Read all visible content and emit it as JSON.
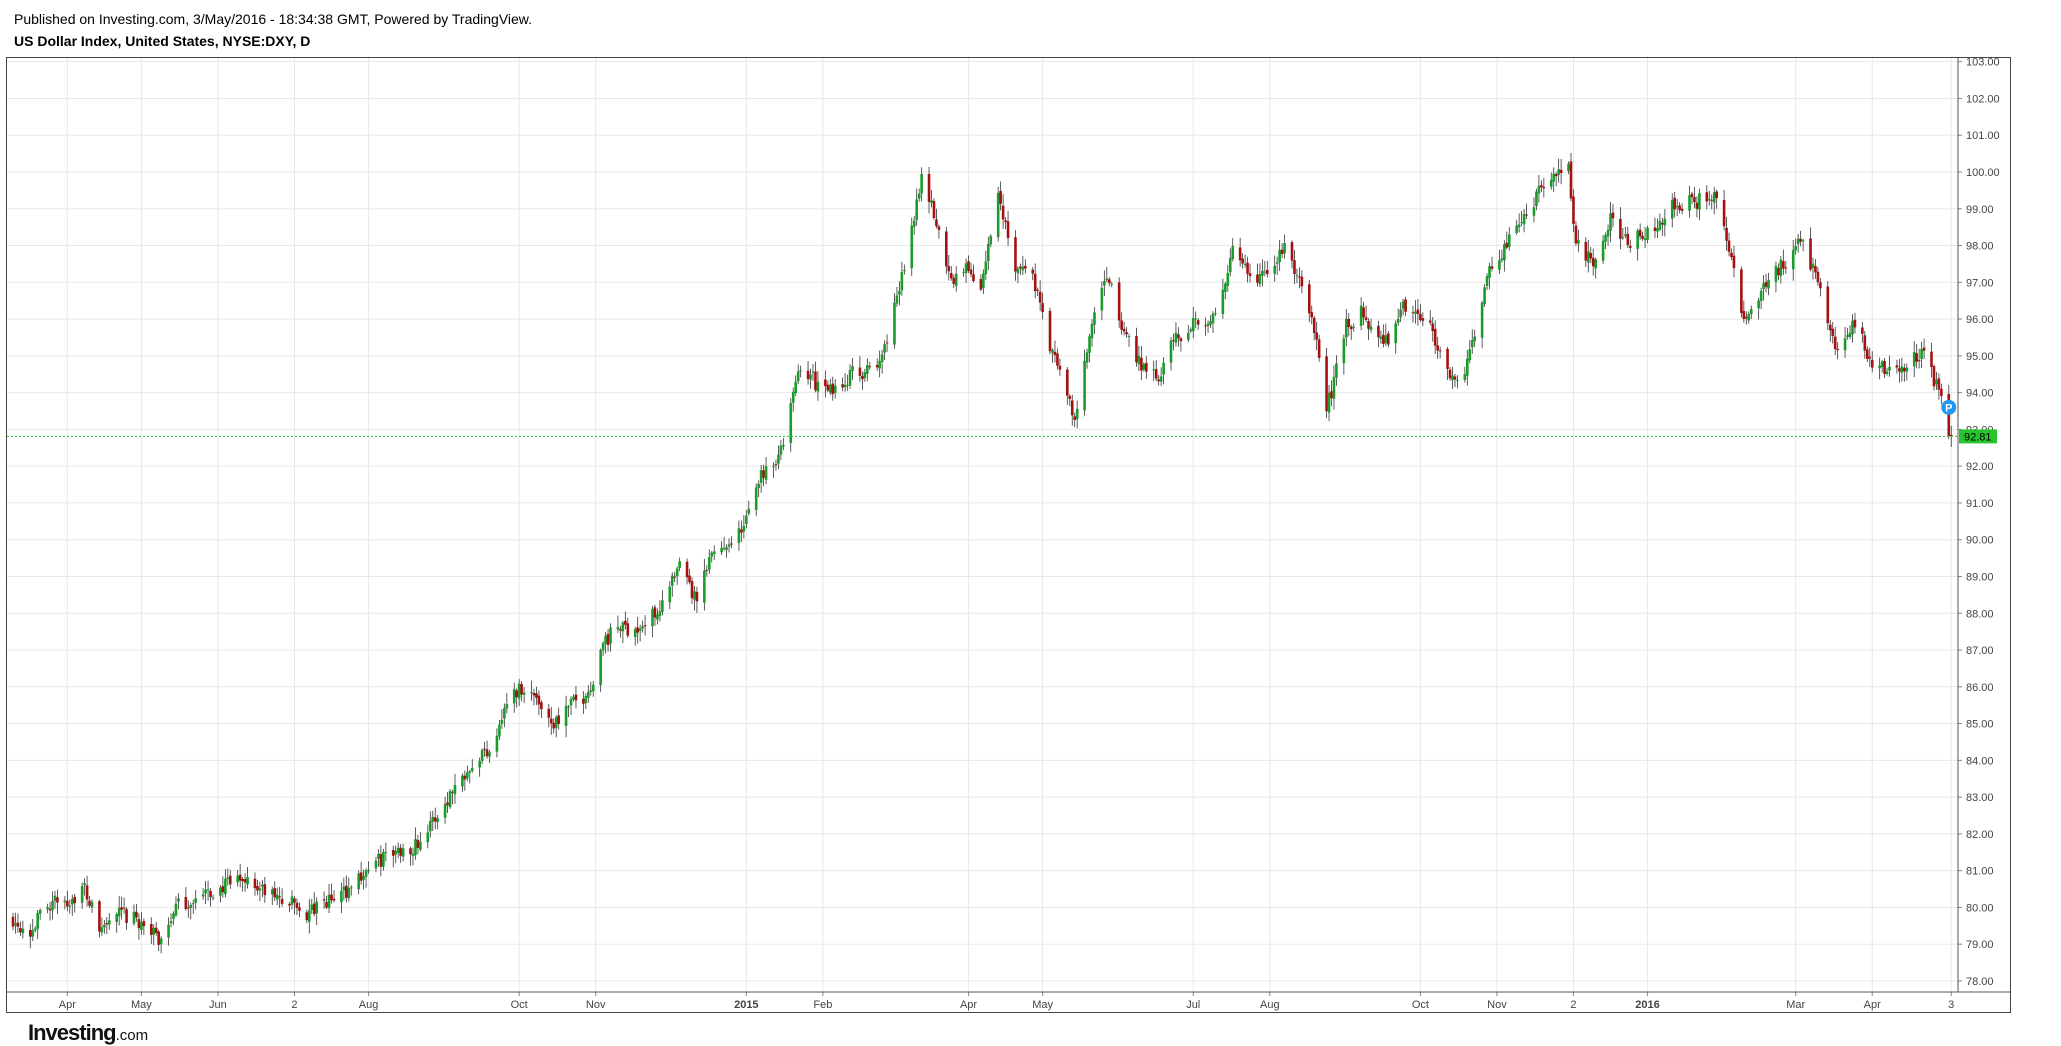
{
  "header": {
    "published": "Published on Investing.com, 3/May/2016 - 18:34:38 GMT, Powered by TradingView.",
    "symbol": "US Dollar Index, United States, NYSE:DXY, D"
  },
  "logo": {
    "brand": "Investing",
    "suffix": ".com"
  },
  "colors": {
    "up": "#1a9b2a",
    "down": "#a31111",
    "grid": "#e8e8e8",
    "last_price_line": "#27c42e",
    "last_price_badge": "#27c42e",
    "marker": "#2196f3"
  },
  "chart_data": {
    "type": "candlestick",
    "title": "US Dollar Index, United States, NYSE:DXY, D",
    "timeframe": "D",
    "ylim": [
      77.7,
      103.1
    ],
    "y_ticks": [
      "78.00",
      "79.00",
      "80.00",
      "81.00",
      "82.00",
      "83.00",
      "84.00",
      "85.00",
      "86.00",
      "87.00",
      "88.00",
      "89.00",
      "90.00",
      "91.00",
      "92.00",
      "93.00",
      "94.00",
      "95.00",
      "96.00",
      "97.00",
      "98.00",
      "99.00",
      "100.00",
      "101.00",
      "102.00",
      "103.00"
    ],
    "x_range": [
      "2014-03-10",
      "2016-05-11"
    ],
    "x_ticks": [
      {
        "label": "Apr",
        "date": "2014-04-01",
        "bold": false
      },
      {
        "label": "May",
        "date": "2014-05-01",
        "bold": false
      },
      {
        "label": "Jun",
        "date": "2014-06-01",
        "bold": false
      },
      {
        "label": "2",
        "date": "2014-07-02",
        "bold": false
      },
      {
        "label": "Aug",
        "date": "2014-08-01",
        "bold": false
      },
      {
        "label": "Oct",
        "date": "2014-10-01",
        "bold": false
      },
      {
        "label": "Nov",
        "date": "2014-11-01",
        "bold": false
      },
      {
        "label": "2015",
        "date": "2015-01-01",
        "bold": true
      },
      {
        "label": "Feb",
        "date": "2015-02-01",
        "bold": false
      },
      {
        "label": "Apr",
        "date": "2015-04-01",
        "bold": false
      },
      {
        "label": "May",
        "date": "2015-05-01",
        "bold": false
      },
      {
        "label": "Jul",
        "date": "2015-07-01",
        "bold": false
      },
      {
        "label": "Aug",
        "date": "2015-08-01",
        "bold": false
      },
      {
        "label": "Oct",
        "date": "2015-10-01",
        "bold": false
      },
      {
        "label": "Nov",
        "date": "2015-11-01",
        "bold": false
      },
      {
        "label": "2",
        "date": "2015-12-02",
        "bold": false
      },
      {
        "label": "2016",
        "date": "2016-01-01",
        "bold": true
      },
      {
        "label": "Mar",
        "date": "2016-03-01",
        "bold": false
      },
      {
        "label": "Apr",
        "date": "2016-04-01",
        "bold": false
      },
      {
        "label": "3",
        "date": "2016-05-03",
        "bold": false
      }
    ],
    "last_price": 92.81,
    "last_price_label": "92.81",
    "marker_label": "P",
    "marker_date": "2016-05-02",
    "marker_value": 93.6,
    "price_path": [
      [
        "2014-03-10",
        79.7
      ],
      [
        "2014-03-17",
        79.35
      ],
      [
        "2014-03-24",
        80.1
      ],
      [
        "2014-04-02",
        80.2
      ],
      [
        "2014-04-08",
        80.5
      ],
      [
        "2014-04-14",
        79.4
      ],
      [
        "2014-04-22",
        79.8
      ],
      [
        "2014-05-01",
        79.6
      ],
      [
        "2014-05-08",
        79.1
      ],
      [
        "2014-05-15",
        80.0
      ],
      [
        "2014-05-26",
        80.3
      ],
      [
        "2014-06-05",
        80.6
      ],
      [
        "2014-06-12",
        80.8
      ],
      [
        "2014-06-20",
        80.4
      ],
      [
        "2014-07-01",
        80.1
      ],
      [
        "2014-07-07",
        79.8
      ],
      [
        "2014-07-14",
        80.1
      ],
      [
        "2014-07-22",
        80.4
      ],
      [
        "2014-07-31",
        81.0
      ],
      [
        "2014-08-08",
        81.4
      ],
      [
        "2014-08-20",
        81.7
      ],
      [
        "2014-08-27",
        82.3
      ],
      [
        "2014-09-05",
        83.3
      ],
      [
        "2014-09-12",
        84.0
      ],
      [
        "2014-09-19",
        84.3
      ],
      [
        "2014-09-26",
        85.6
      ],
      [
        "2014-10-02",
        86.0
      ],
      [
        "2014-10-08",
        85.7
      ],
      [
        "2014-10-15",
        85.0
      ],
      [
        "2014-10-22",
        85.5
      ],
      [
        "2014-10-29",
        85.8
      ],
      [
        "2014-11-04",
        87.2
      ],
      [
        "2014-11-10",
        87.6
      ],
      [
        "2014-11-20",
        87.6
      ],
      [
        "2014-11-28",
        88.3
      ],
      [
        "2014-12-05",
        89.2
      ],
      [
        "2014-12-12",
        88.3
      ],
      [
        "2014-12-18",
        89.6
      ],
      [
        "2014-12-31",
        90.3
      ],
      [
        "2015-01-06",
        91.7
      ],
      [
        "2015-01-15",
        92.4
      ],
      [
        "2015-01-23",
        94.8
      ],
      [
        "2015-01-30",
        94.2
      ],
      [
        "2015-02-05",
        94.0
      ],
      [
        "2015-02-12",
        94.5
      ],
      [
        "2015-02-23",
        94.6
      ],
      [
        "2015-03-03",
        96.5
      ],
      [
        "2015-03-09",
        98.5
      ],
      [
        "2015-03-13",
        100.0
      ],
      [
        "2015-03-18",
        98.8
      ],
      [
        "2015-03-25",
        97.1
      ],
      [
        "2015-04-01",
        97.4
      ],
      [
        "2015-04-06",
        96.8
      ],
      [
        "2015-04-13",
        99.4
      ],
      [
        "2015-04-20",
        97.5
      ],
      [
        "2015-04-27",
        97.2
      ],
      [
        "2015-05-04",
        95.2
      ],
      [
        "2015-05-08",
        94.6
      ],
      [
        "2015-05-14",
        93.2
      ],
      [
        "2015-05-20",
        95.5
      ],
      [
        "2015-05-27",
        97.2
      ],
      [
        "2015-06-03",
        95.6
      ],
      [
        "2015-06-10",
        94.8
      ],
      [
        "2015-06-17",
        94.5
      ],
      [
        "2015-06-24",
        95.5
      ],
      [
        "2015-07-02",
        96.0
      ],
      [
        "2015-07-10",
        96.0
      ],
      [
        "2015-07-17",
        97.8
      ],
      [
        "2015-07-24",
        97.1
      ],
      [
        "2015-07-31",
        97.2
      ],
      [
        "2015-08-07",
        98.0
      ],
      [
        "2015-08-14",
        96.8
      ],
      [
        "2015-08-20",
        95.5
      ],
      [
        "2015-08-24",
        93.5
      ],
      [
        "2015-09-01",
        95.8
      ],
      [
        "2015-09-08",
        96.2
      ],
      [
        "2015-09-16",
        95.2
      ],
      [
        "2015-09-23",
        96.3
      ],
      [
        "2015-10-01",
        96.1
      ],
      [
        "2015-10-07",
        95.5
      ],
      [
        "2015-10-14",
        94.4
      ],
      [
        "2015-10-20",
        94.7
      ],
      [
        "2015-10-28",
        97.2
      ],
      [
        "2015-11-05",
        98.0
      ],
      [
        "2015-11-12",
        98.9
      ],
      [
        "2015-11-19",
        99.5
      ],
      [
        "2015-11-30",
        100.2
      ],
      [
        "2015-12-03",
        98.0
      ],
      [
        "2015-12-10",
        97.6
      ],
      [
        "2015-12-17",
        98.8
      ],
      [
        "2015-12-24",
        98.0
      ],
      [
        "2016-01-04",
        98.6
      ],
      [
        "2016-01-12",
        99.1
      ],
      [
        "2016-01-21",
        99.2
      ],
      [
        "2016-01-28",
        99.4
      ],
      [
        "2016-02-03",
        97.8
      ],
      [
        "2016-02-10",
        95.8
      ],
      [
        "2016-02-17",
        96.9
      ],
      [
        "2016-02-25",
        97.5
      ],
      [
        "2016-03-02",
        98.2
      ],
      [
        "2016-03-09",
        97.3
      ],
      [
        "2016-03-17",
        95.1
      ],
      [
        "2016-03-25",
        95.9
      ],
      [
        "2016-03-31",
        94.9
      ],
      [
        "2016-04-07",
        94.6
      ],
      [
        "2016-04-14",
        94.7
      ],
      [
        "2016-04-21",
        95.1
      ],
      [
        "2016-04-27",
        94.2
      ],
      [
        "2016-05-03",
        92.81
      ]
    ]
  }
}
